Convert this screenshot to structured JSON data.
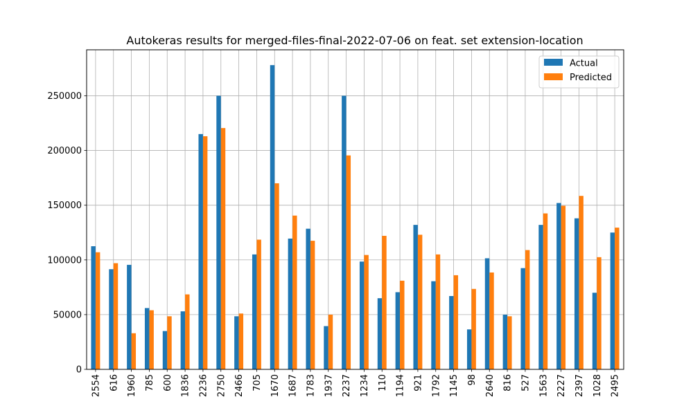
{
  "chart_data": {
    "type": "bar",
    "title": "Autokeras results for merged-files-final-2022-07-06 on feat. set extension-location",
    "xlabel": "",
    "ylabel": "",
    "categories": [
      "2554",
      "616",
      "1960",
      "785",
      "600",
      "1836",
      "2236",
      "2750",
      "2466",
      "705",
      "1670",
      "1687",
      "1783",
      "1937",
      "2237",
      "1234",
      "110",
      "1194",
      "921",
      "1792",
      "1145",
      "98",
      "2640",
      "816",
      "527",
      "1563",
      "2227",
      "2397",
      "1028",
      "2495"
    ],
    "series": [
      {
        "name": "Actual",
        "color": "#1f77b4",
        "values": [
          112500,
          91500,
          95500,
          56000,
          35000,
          53000,
          215000,
          250000,
          48500,
          105000,
          278000,
          119500,
          128500,
          39500,
          250000,
          98500,
          65000,
          70500,
          132000,
          80500,
          67000,
          36500,
          101500,
          50000,
          92500,
          132000,
          152000,
          138000,
          70000,
          125000
        ]
      },
      {
        "name": "Predicted",
        "color": "#ff7f0e",
        "values": [
          107000,
          97000,
          33000,
          54000,
          48500,
          68500,
          213000,
          220500,
          51000,
          118500,
          170000,
          140500,
          117500,
          50000,
          195500,
          104500,
          122000,
          81000,
          123000,
          105000,
          86000,
          73500,
          88500,
          48500,
          109000,
          142500,
          149500,
          158500,
          102500,
          129500
        ]
      }
    ],
    "ylim": [
      0,
      292000
    ],
    "yticks": [
      0,
      50000,
      100000,
      150000,
      200000,
      250000
    ],
    "ytick_labels": [
      "0",
      "50000",
      "100000",
      "150000",
      "200000",
      "250000"
    ],
    "grid": true,
    "legend_position": "top-right"
  }
}
